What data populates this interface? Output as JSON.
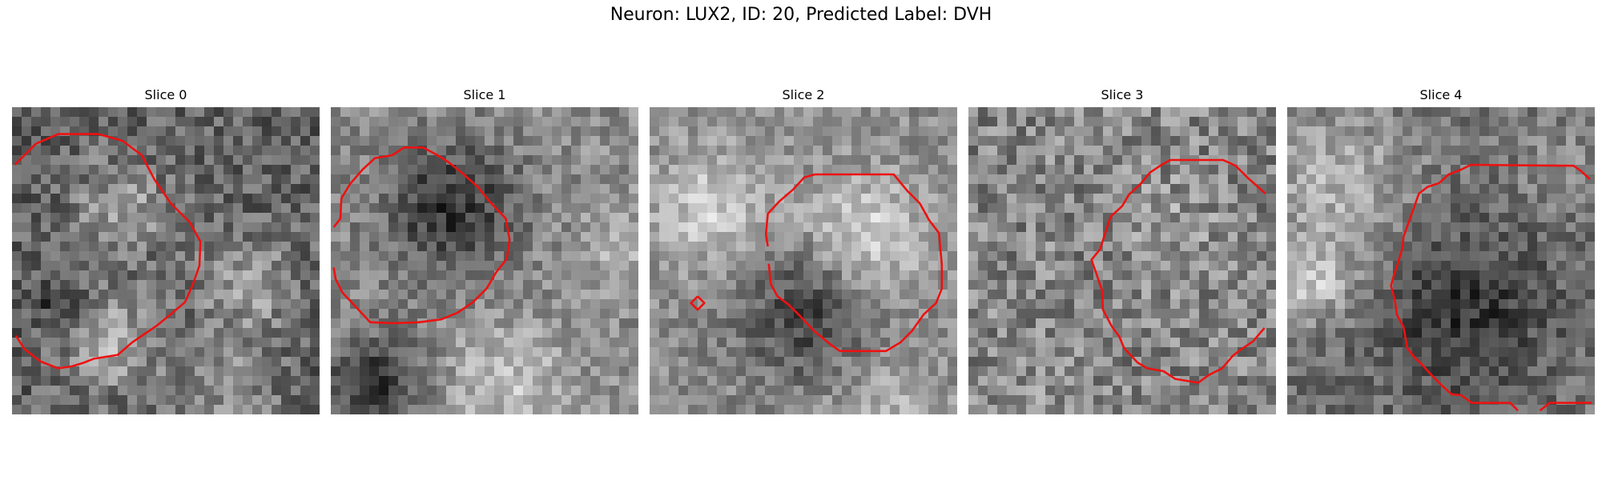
{
  "figure": {
    "title": "Neuron: LUX2, ID: 20, Predicted Label: DVH"
  },
  "panels": [
    {
      "title": "Slice 0"
    },
    {
      "title": "Slice 1"
    },
    {
      "title": "Slice 2"
    },
    {
      "title": "Slice 3"
    },
    {
      "title": "Slice 4"
    }
  ],
  "colors": {
    "contour": "#ee1111",
    "background": "#ffffff"
  }
}
